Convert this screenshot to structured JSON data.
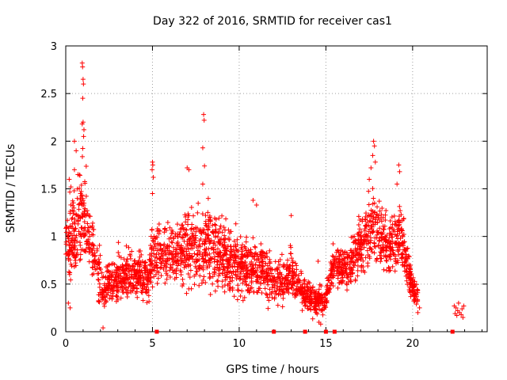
{
  "chart_data": {
    "type": "scatter",
    "title": "Day 322 of 2016, SRMTID for receiver cas1",
    "xlabel": "GPS time / hours",
    "ylabel": "SRMTID / TECUs",
    "xlim": [
      0,
      24.3
    ],
    "ylim": [
      0,
      3
    ],
    "xticks": [
      0,
      5,
      10,
      15,
      20
    ],
    "yticks": [
      0,
      0.5,
      1,
      1.5,
      2,
      2.5,
      3
    ],
    "grid": true,
    "marker": "+",
    "color": "#ff0000",
    "series": [
      {
        "name": "SRMTID",
        "envelope": [
          {
            "x": 0.0,
            "low": 0.5,
            "high": 1.3
          },
          {
            "x": 0.3,
            "low": 0.45,
            "high": 1.6
          },
          {
            "x": 0.6,
            "low": 0.4,
            "high": 1.75
          },
          {
            "x": 1.0,
            "low": 0.45,
            "high": 2.05
          },
          {
            "x": 1.4,
            "low": 0.5,
            "high": 1.5
          },
          {
            "x": 1.8,
            "low": 0.25,
            "high": 1.1
          },
          {
            "x": 2.2,
            "low": 0.12,
            "high": 0.75
          },
          {
            "x": 3.0,
            "low": 0.2,
            "high": 0.95
          },
          {
            "x": 4.0,
            "low": 0.25,
            "high": 0.95
          },
          {
            "x": 4.8,
            "low": 0.2,
            "high": 0.9
          },
          {
            "x": 5.0,
            "low": 0.35,
            "high": 1.25
          },
          {
            "x": 5.5,
            "low": 0.4,
            "high": 1.2
          },
          {
            "x": 6.5,
            "low": 0.4,
            "high": 1.3
          },
          {
            "x": 7.2,
            "low": 0.35,
            "high": 1.45
          },
          {
            "x": 8.0,
            "low": 0.35,
            "high": 1.5
          },
          {
            "x": 9.0,
            "low": 0.3,
            "high": 1.35
          },
          {
            "x": 10.0,
            "low": 0.25,
            "high": 1.1
          },
          {
            "x": 11.0,
            "low": 0.25,
            "high": 1.1
          },
          {
            "x": 12.0,
            "low": 0.2,
            "high": 0.85
          },
          {
            "x": 13.0,
            "low": 0.2,
            "high": 1.0
          },
          {
            "x": 13.9,
            "low": 0.15,
            "high": 0.6
          },
          {
            "x": 14.5,
            "low": 0.1,
            "high": 0.55
          },
          {
            "x": 15.0,
            "low": 0.15,
            "high": 0.5
          },
          {
            "x": 15.5,
            "low": 0.4,
            "high": 1.1
          },
          {
            "x": 16.2,
            "low": 0.35,
            "high": 0.95
          },
          {
            "x": 17.2,
            "low": 0.45,
            "high": 1.45
          },
          {
            "x": 17.8,
            "low": 0.6,
            "high": 1.75
          },
          {
            "x": 18.5,
            "low": 0.45,
            "high": 1.3
          },
          {
            "x": 19.3,
            "low": 0.55,
            "high": 1.5
          },
          {
            "x": 20.0,
            "low": 0.25,
            "high": 0.65
          },
          {
            "x": 20.3,
            "low": 0.2,
            "high": 0.55
          }
        ],
        "points": [
          {
            "x": 0.95,
            "y": 2.82
          },
          {
            "x": 0.97,
            "y": 2.78
          },
          {
            "x": 1.0,
            "y": 2.65
          },
          {
            "x": 1.02,
            "y": 2.6
          },
          {
            "x": 0.98,
            "y": 2.45
          },
          {
            "x": 1.0,
            "y": 2.2
          },
          {
            "x": 0.95,
            "y": 2.18
          },
          {
            "x": 1.05,
            "y": 2.12
          },
          {
            "x": 1.03,
            "y": 2.05
          },
          {
            "x": 0.5,
            "y": 2.0
          },
          {
            "x": 0.6,
            "y": 1.9
          },
          {
            "x": 0.5,
            "y": 1.7
          },
          {
            "x": 0.7,
            "y": 1.65
          },
          {
            "x": 0.2,
            "y": 1.6
          },
          {
            "x": 0.3,
            "y": 1.52
          },
          {
            "x": 0.15,
            "y": 0.3
          },
          {
            "x": 0.25,
            "y": 0.25
          },
          {
            "x": 2.15,
            "y": 0.04
          },
          {
            "x": 5.0,
            "y": 1.78
          },
          {
            "x": 5.02,
            "y": 1.75
          },
          {
            "x": 4.98,
            "y": 1.7
          },
          {
            "x": 5.05,
            "y": 1.62
          },
          {
            "x": 5.0,
            "y": 1.45
          },
          {
            "x": 7.0,
            "y": 1.72
          },
          {
            "x": 7.1,
            "y": 1.7
          },
          {
            "x": 7.95,
            "y": 2.28
          },
          {
            "x": 7.98,
            "y": 2.22
          },
          {
            "x": 7.9,
            "y": 1.93
          },
          {
            "x": 8.0,
            "y": 1.74
          },
          {
            "x": 7.9,
            "y": 1.55
          },
          {
            "x": 10.8,
            "y": 1.38
          },
          {
            "x": 11.0,
            "y": 1.33
          },
          {
            "x": 13.0,
            "y": 1.22
          },
          {
            "x": 14.6,
            "y": 0.1
          },
          {
            "x": 14.7,
            "y": 0.08
          },
          {
            "x": 14.55,
            "y": 0.74
          },
          {
            "x": 17.75,
            "y": 2.0
          },
          {
            "x": 17.8,
            "y": 1.95
          },
          {
            "x": 17.7,
            "y": 1.85
          },
          {
            "x": 17.85,
            "y": 1.78
          },
          {
            "x": 17.6,
            "y": 1.72
          },
          {
            "x": 17.5,
            "y": 1.6
          },
          {
            "x": 19.2,
            "y": 1.75
          },
          {
            "x": 19.25,
            "y": 1.68
          },
          {
            "x": 19.1,
            "y": 1.55
          },
          {
            "x": 20.4,
            "y": 0.25
          },
          {
            "x": 20.3,
            "y": 0.2
          },
          {
            "x": 22.4,
            "y": 0.27
          },
          {
            "x": 22.5,
            "y": 0.25
          },
          {
            "x": 22.6,
            "y": 0.22
          },
          {
            "x": 22.7,
            "y": 0.2
          },
          {
            "x": 22.8,
            "y": 0.18
          },
          {
            "x": 22.9,
            "y": 0.15
          },
          {
            "x": 22.95,
            "y": 0.27
          },
          {
            "x": 22.55,
            "y": 0.17
          },
          {
            "x": 22.65,
            "y": 0.3
          },
          {
            "x": 22.85,
            "y": 0.24
          },
          {
            "x": 22.45,
            "y": 0.19
          }
        ],
        "density_note": "dense scatter of many points between envelope low and high, cluster at 22.3-23.0 hours around 0.15-0.3"
      }
    ],
    "gap_markers": {
      "y": 0,
      "x": [
        5.25,
        12.0,
        13.8,
        15.0,
        15.5,
        22.3
      ]
    }
  }
}
